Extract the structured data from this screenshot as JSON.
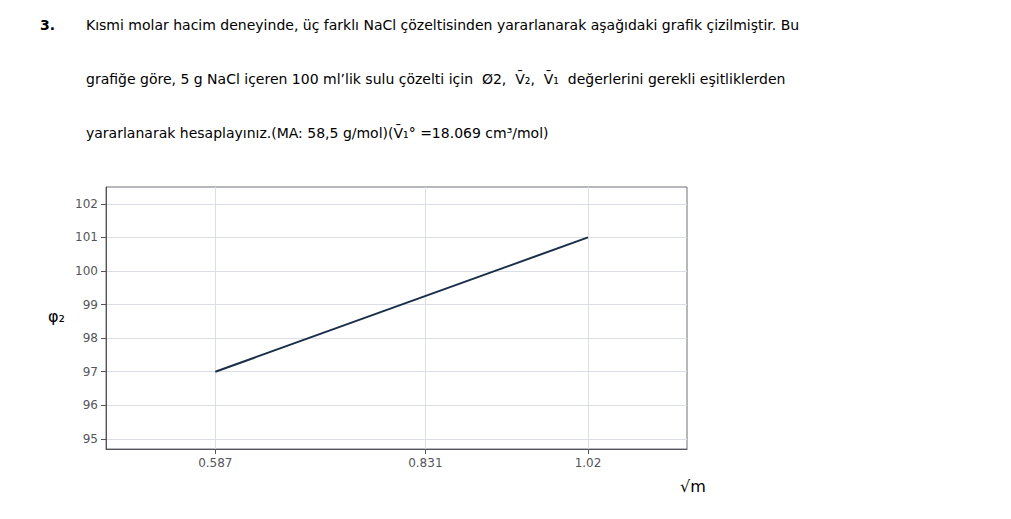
{
  "chart_data": {
    "type": "line",
    "annotations": [
      "3.",
      "Kısmi molar hacim deneyinde, üç farklı NaCl çözeltisinden yararlanarak aşağıdaki grafik çizilmiştir. Bu",
      "grafiğe göre, 5 g NaCl içeren 100 ml’lik sulu çözelti için  Ø2,  V̄₂,  V̄₁  değerlerini gerekli eşitliklerden",
      "yararlanarak hesaplayınız.(MA: 58,5 g/mol)(V̄₁° =18.069 cm³/mol)"
    ],
    "xlabel": "√m",
    "ylabel": "φ₂",
    "x": [
      0.587,
      1.02
    ],
    "values": [
      97.0,
      101.0
    ],
    "color": "#1a2e4a",
    "xlim": [
      0.46,
      1.135
    ],
    "ylim": [
      94.7,
      102.5
    ],
    "xticks": [
      0.587,
      0.831,
      1.02
    ],
    "yticks": [
      95,
      96,
      97,
      98,
      99,
      100,
      101,
      102
    ],
    "grid": true
  }
}
